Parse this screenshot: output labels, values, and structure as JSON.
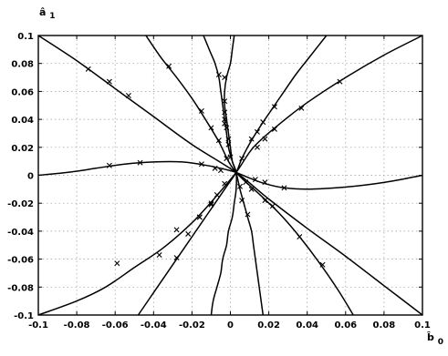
{
  "chart_data": {
    "type": "line",
    "title": "",
    "xlabel": "b̂ 0",
    "ylabel": "â 1",
    "xlabel_main": "b̂",
    "xlabel_sub": "0",
    "ylabel_main": "â",
    "ylabel_sub": "1",
    "xlim": [
      -0.1,
      0.1
    ],
    "ylim": [
      -0.1,
      0.1
    ],
    "x_ticks": [
      -0.1,
      -0.08,
      -0.06,
      -0.04,
      -0.02,
      0,
      0.02,
      0.04,
      0.06,
      0.08,
      0.1
    ],
    "y_ticks": [
      -0.1,
      -0.08,
      -0.06,
      -0.04,
      -0.02,
      0,
      0.02,
      0.04,
      0.06,
      0.08,
      0.1
    ],
    "x_tick_labels": [
      "-0.1",
      "-0.08",
      "-0.06",
      "-0.04",
      "-0.02",
      "0",
      "0.02",
      "0.04",
      "0.06",
      "0.08",
      "0.1"
    ],
    "y_tick_labels": [
      "0.1",
      "0.08",
      "0.06",
      "0.04",
      "0.02",
      "0",
      "-0.02",
      "-0.04",
      "-0.06",
      "-0.08",
      "-0.1"
    ],
    "grid": true,
    "line_color": "#000000",
    "grid_color": "#9a9a9a",
    "marker": "x",
    "series": [
      {
        "points": [
          [
            -0.1,
            0.1
          ],
          [
            -0.08,
            0.082
          ],
          [
            -0.06,
            0.062
          ],
          [
            -0.04,
            0.042
          ],
          [
            -0.02,
            0.022
          ],
          [
            0.003,
            0.002
          ],
          [
            0.02,
            -0.017
          ],
          [
            0.04,
            -0.038
          ],
          [
            0.06,
            -0.058
          ],
          [
            0.08,
            -0.079
          ],
          [
            0.1,
            -0.1
          ]
        ],
        "markers": [
          [
            -0.074,
            0.076
          ],
          [
            -0.063,
            0.067
          ],
          [
            -0.053,
            0.057
          ]
        ]
      },
      {
        "points": [
          [
            -0.044,
            0.1
          ],
          [
            -0.036,
            0.084
          ],
          [
            -0.028,
            0.07
          ],
          [
            -0.02,
            0.055
          ],
          [
            -0.013,
            0.04
          ],
          [
            -0.006,
            0.024
          ],
          [
            -0.001,
            0.01
          ],
          [
            0.003,
            0.002
          ],
          [
            0.009,
            -0.006
          ],
          [
            0.017,
            -0.016
          ],
          [
            0.026,
            -0.028
          ],
          [
            0.036,
            -0.044
          ],
          [
            0.046,
            -0.062
          ],
          [
            0.056,
            -0.082
          ],
          [
            0.064,
            -0.1
          ]
        ],
        "markers": [
          [
            -0.032,
            0.078
          ],
          [
            -0.015,
            0.046
          ],
          [
            -0.01,
            0.034
          ],
          [
            -0.006,
            0.025
          ],
          [
            -0.002,
            0.012
          ],
          [
            0.008,
            -0.005
          ],
          [
            0.011,
            -0.01
          ],
          [
            0.018,
            -0.018
          ],
          [
            0.022,
            -0.022
          ],
          [
            0.036,
            -0.044
          ],
          [
            0.048,
            -0.064
          ]
        ]
      },
      {
        "points": [
          [
            -0.014,
            0.1
          ],
          [
            -0.011,
            0.09
          ],
          [
            -0.008,
            0.08
          ],
          [
            -0.006,
            0.07
          ],
          [
            -0.005,
            0.06
          ],
          [
            -0.004,
            0.05
          ],
          [
            -0.003,
            0.04
          ],
          [
            -0.002,
            0.03
          ],
          [
            -0.001,
            0.02
          ],
          [
            0.001,
            0.01
          ],
          [
            0.003,
            0.002
          ],
          [
            0.005,
            -0.01
          ],
          [
            0.007,
            -0.02
          ],
          [
            0.009,
            -0.03
          ],
          [
            0.011,
            -0.04
          ],
          [
            0.012,
            -0.05
          ],
          [
            0.013,
            -0.06
          ],
          [
            0.014,
            -0.07
          ],
          [
            0.015,
            -0.08
          ],
          [
            0.016,
            -0.09
          ],
          [
            0.017,
            -0.1
          ]
        ],
        "markers": [
          [
            -0.006,
            0.072
          ],
          [
            -0.003,
            0.04
          ],
          [
            -0.002,
            0.034
          ],
          [
            -0.001,
            0.022
          ],
          [
            0.005,
            -0.008
          ],
          [
            0.006,
            -0.018
          ],
          [
            0.009,
            -0.028
          ]
        ]
      },
      {
        "points": [
          [
            0.002,
            0.1
          ],
          [
            0.001,
            0.09
          ],
          [
            0.0,
            0.08
          ],
          [
            -0.002,
            0.07
          ],
          [
            -0.003,
            0.06
          ],
          [
            -0.003,
            0.05
          ],
          [
            -0.002,
            0.04
          ],
          [
            -0.001,
            0.03
          ],
          [
            0.0,
            0.02
          ],
          [
            0.001,
            0.01
          ],
          [
            0.003,
            0.002
          ],
          [
            0.003,
            -0.01
          ],
          [
            0.002,
            -0.02
          ],
          [
            0.001,
            -0.03
          ],
          [
            -0.001,
            -0.04
          ],
          [
            -0.002,
            -0.05
          ],
          [
            -0.004,
            -0.06
          ],
          [
            -0.005,
            -0.07
          ],
          [
            -0.007,
            -0.08
          ],
          [
            -0.009,
            -0.09
          ],
          [
            -0.01,
            -0.1
          ]
        ],
        "markers": [
          [
            -0.003,
            0.07
          ],
          [
            -0.003,
            0.053
          ],
          [
            -0.003,
            0.045
          ],
          [
            -0.003,
            0.037
          ],
          [
            -0.001,
            0.026
          ],
          [
            0.0,
            0.013
          ]
        ]
      },
      {
        "points": [
          [
            0.05,
            0.1
          ],
          [
            0.042,
            0.086
          ],
          [
            0.034,
            0.072
          ],
          [
            0.026,
            0.056
          ],
          [
            0.018,
            0.04
          ],
          [
            0.011,
            0.025
          ],
          [
            0.006,
            0.012
          ],
          [
            0.003,
            0.002
          ],
          [
            -0.002,
            -0.008
          ],
          [
            -0.008,
            -0.02
          ],
          [
            -0.016,
            -0.036
          ],
          [
            -0.024,
            -0.052
          ],
          [
            -0.032,
            -0.068
          ],
          [
            -0.04,
            -0.084
          ],
          [
            -0.048,
            -0.1
          ]
        ],
        "markers": [
          [
            0.023,
            0.049
          ],
          [
            0.017,
            0.038
          ],
          [
            0.014,
            0.031
          ],
          [
            0.011,
            0.026
          ],
          [
            0.006,
            0.012
          ],
          [
            -0.003,
            -0.006
          ],
          [
            -0.007,
            -0.014
          ],
          [
            -0.01,
            -0.02
          ],
          [
            -0.016,
            -0.03
          ],
          [
            -0.022,
            -0.042
          ],
          [
            -0.028,
            -0.059
          ]
        ]
      },
      {
        "points": [
          [
            0.1,
            0.1
          ],
          [
            0.08,
            0.086
          ],
          [
            0.06,
            0.07
          ],
          [
            0.04,
            0.052
          ],
          [
            0.025,
            0.036
          ],
          [
            0.012,
            0.02
          ],
          [
            0.003,
            0.002
          ],
          [
            -0.008,
            -0.016
          ],
          [
            -0.02,
            -0.034
          ],
          [
            -0.035,
            -0.052
          ],
          [
            -0.05,
            -0.066
          ],
          [
            -0.065,
            -0.08
          ],
          [
            -0.08,
            -0.09
          ],
          [
            -0.1,
            -0.1
          ]
        ],
        "markers": [
          [
            0.057,
            0.067
          ],
          [
            0.037,
            0.048
          ],
          [
            0.023,
            0.033
          ],
          [
            0.018,
            0.026
          ],
          [
            0.014,
            0.02
          ],
          [
            -0.01,
            -0.021
          ],
          [
            -0.016,
            -0.03
          ],
          [
            -0.028,
            -0.039
          ],
          [
            -0.037,
            -0.057
          ],
          [
            -0.059,
            -0.063
          ]
        ]
      },
      {
        "points": [
          [
            -0.1,
            0.0
          ],
          [
            -0.085,
            0.002
          ],
          [
            -0.07,
            0.005
          ],
          [
            -0.055,
            0.008
          ],
          [
            -0.04,
            0.0095
          ],
          [
            -0.025,
            0.0095
          ],
          [
            -0.012,
            0.007
          ],
          [
            -0.002,
            0.004
          ],
          [
            0.003,
            0.002
          ],
          [
            0.01,
            -0.002
          ],
          [
            0.018,
            -0.006
          ],
          [
            0.028,
            -0.009
          ],
          [
            0.04,
            -0.01
          ],
          [
            0.055,
            -0.009
          ],
          [
            0.07,
            -0.007
          ],
          [
            0.085,
            -0.004
          ],
          [
            0.1,
            0.0
          ]
        ],
        "markers": [
          [
            -0.063,
            0.007
          ],
          [
            -0.047,
            0.009
          ],
          [
            -0.015,
            0.008
          ],
          [
            -0.008,
            0.005
          ],
          [
            -0.005,
            0.0035
          ],
          [
            0.013,
            -0.003
          ],
          [
            0.018,
            -0.005
          ],
          [
            0.028,
            -0.009
          ]
        ]
      }
    ]
  }
}
